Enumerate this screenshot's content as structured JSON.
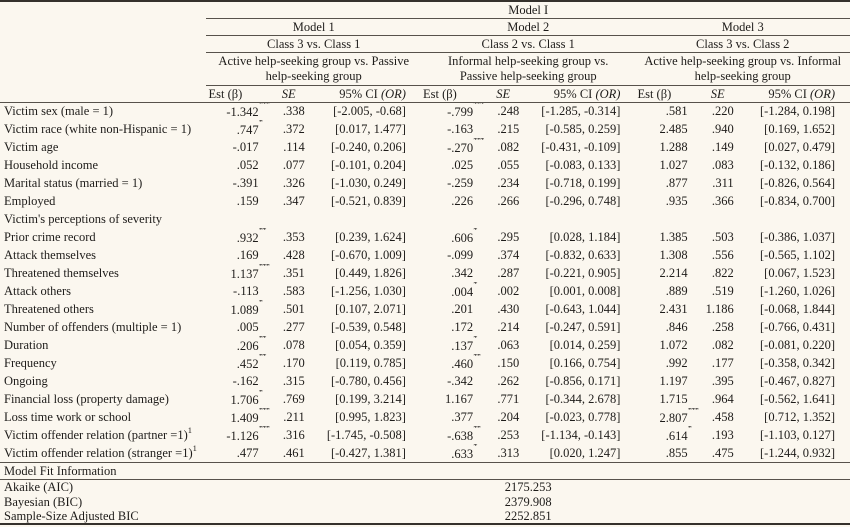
{
  "header": {
    "span_title": "Model I",
    "models": [
      {
        "name": "Model 1",
        "classes": "Class 3 vs. Class 1",
        "groups": "Active help-seeking group vs. Passive help-seeking group"
      },
      {
        "name": "Model 2",
        "classes": "Class 2 vs. Class 1",
        "groups": "Informal help-seeking group vs. Passive help-seeking group"
      },
      {
        "name": "Model 3",
        "classes": "Class 3 vs. Class 2",
        "groups": "Active help-seeking group vs. Informal help-seeking group"
      }
    ],
    "est_label": "Est (β)",
    "se_label": "SE",
    "ci_label": "95% CI",
    "ci_or_label": "(OR)"
  },
  "rows": [
    {
      "label": "Victim sex (male = 1)",
      "m": [
        [
          "-1.342",
          "***",
          ".338",
          "[-2.005, -0.68]"
        ],
        [
          "-.799",
          "***",
          ".248",
          "[-1.285, -0.314]"
        ],
        [
          ".581",
          "",
          ".220",
          "[-1.284, 0.198]"
        ]
      ]
    },
    {
      "label": "Victim race (white non-Hispanic = 1)",
      "m": [
        [
          ".747",
          "*",
          ".372",
          "[0.017, 1.477]"
        ],
        [
          "-.163",
          "",
          ".215",
          "[-0.585, 0.259]"
        ],
        [
          "2.485",
          "",
          ".940",
          "[0.169, 1.652]"
        ]
      ]
    },
    {
      "label": "Victim age",
      "m": [
        [
          "-.017",
          "",
          ".114",
          "[-0.240, 0.206]"
        ],
        [
          "-.270",
          "***",
          ".082",
          "[-0.431, -0.109]"
        ],
        [
          "1.288",
          "",
          ".149",
          "[0.027, 0.479]"
        ]
      ]
    },
    {
      "label": "Household income",
      "m": [
        [
          ".052",
          "",
          ".077",
          "[-0.101, 0.204]"
        ],
        [
          ".025",
          "",
          ".055",
          "[-0.083, 0.133]"
        ],
        [
          "1.027",
          "",
          ".083",
          "[-0.132, 0.186]"
        ]
      ]
    },
    {
      "label": "Marital status (married = 1)",
      "m": [
        [
          "-.391",
          "",
          ".326",
          "[-1.030, 0.249]"
        ],
        [
          "-.259",
          "",
          ".234",
          "[-0.718, 0.199]"
        ],
        [
          ".877",
          "",
          ".311",
          "[-0.826, 0.564]"
        ]
      ]
    },
    {
      "label": "Employed",
      "m": [
        [
          ".159",
          "",
          ".347",
          "[-0.521, 0.839]"
        ],
        [
          ".226",
          "",
          ".266",
          "[-0.296, 0.748]"
        ],
        [
          ".935",
          "",
          ".366",
          "[-0.834, 0.700]"
        ]
      ]
    },
    {
      "label": "Victim's perceptions of severity",
      "section": true
    },
    {
      "label": "Prior crime record",
      "m": [
        [
          ".932",
          "**",
          ".353",
          "[0.239, 1.624]"
        ],
        [
          ".606",
          "*",
          ".295",
          "[0.028, 1.184]"
        ],
        [
          "1.385",
          "",
          ".503",
          "[-0.386, 1.037]"
        ]
      ]
    },
    {
      "label": "Attack themselves",
      "m": [
        [
          ".169",
          "",
          ".428",
          "[-0.670, 1.009]"
        ],
        [
          "-.099",
          "",
          ".374",
          "[-0.832, 0.633]"
        ],
        [
          "1.308",
          "",
          ".556",
          "[-0.565, 1.102]"
        ]
      ]
    },
    {
      "label": "Threatened themselves",
      "m": [
        [
          "1.137",
          "***",
          ".351",
          "[0.449, 1.826]"
        ],
        [
          ".342",
          "",
          ".287",
          "[-0.221, 0.905]"
        ],
        [
          "2.214",
          "",
          ".822",
          "[0.067, 1.523]"
        ]
      ]
    },
    {
      "label": "Attack others",
      "m": [
        [
          "-.113",
          "",
          ".583",
          "[-1.256, 1.030]"
        ],
        [
          ".004",
          "*",
          ".002",
          "[0.001, 0.008]"
        ],
        [
          ".889",
          "",
          ".519",
          "[-1.260, 1.026]"
        ]
      ]
    },
    {
      "label": "Threatened others",
      "m": [
        [
          "1.089",
          "*",
          ".501",
          "[0.107, 2.071]"
        ],
        [
          ".201",
          "",
          ".430",
          "[-0.643, 1.044]"
        ],
        [
          "2.431",
          "",
          "1.186",
          "[-0.068, 1.844]"
        ]
      ]
    },
    {
      "label": "Number of offenders (multiple = 1)",
      "m": [
        [
          ".005",
          "",
          ".277",
          "[-0.539, 0.548]"
        ],
        [
          ".172",
          "",
          ".214",
          "[-0.247, 0.591]"
        ],
        [
          ".846",
          "",
          ".258",
          "[-0.766, 0.431]"
        ]
      ]
    },
    {
      "label": "Duration",
      "m": [
        [
          ".206",
          "**",
          ".078",
          "[0.054, 0.359]"
        ],
        [
          ".137",
          "*",
          ".063",
          "[0.014, 0.259]"
        ],
        [
          "1.072",
          "",
          ".082",
          "[-0.081, 0.220]"
        ]
      ]
    },
    {
      "label": "Frequency",
      "m": [
        [
          ".452",
          "**",
          ".170",
          "[0.119, 0.785]"
        ],
        [
          ".460",
          "**",
          ".150",
          "[0.166, 0.754]"
        ],
        [
          ".992",
          "",
          ".177",
          "[-0.358, 0.342]"
        ]
      ]
    },
    {
      "label": "Ongoing",
      "m": [
        [
          "-.162",
          "",
          ".315",
          "[-0.780, 0.456]"
        ],
        [
          "-.342",
          "",
          ".262",
          "[-0.856, 0.171]"
        ],
        [
          "1.197",
          "",
          ".395",
          "[-0.467, 0.827]"
        ]
      ]
    },
    {
      "label": "Financial loss (property damage)",
      "m": [
        [
          "1.706",
          "*",
          ".769",
          "[0.199, 3.214]"
        ],
        [
          "1.167",
          "",
          ".771",
          "[-0.344, 2.678]"
        ],
        [
          "1.715",
          "",
          ".964",
          "[-0.562, 1.641]"
        ]
      ]
    },
    {
      "label": "Loss time work or school",
      "m": [
        [
          "1.409",
          "***",
          ".211",
          "[0.995, 1.823]"
        ],
        [
          ".377",
          "",
          ".204",
          "[-0.023, 0.778]"
        ],
        [
          "2.807",
          "***",
          ".458",
          "[0.712, 1.352]"
        ]
      ]
    },
    {
      "label": "Victim offender relation (partner =1)",
      "sup": "1",
      "m": [
        [
          "-1.126",
          "***",
          ".316",
          "[-1.745, -0.508]"
        ],
        [
          "-.638",
          "**",
          ".253",
          "[-1.134, -0.143]"
        ],
        [
          ".614",
          "*",
          ".193",
          "[-1.103, 0.127]"
        ]
      ]
    },
    {
      "label": "Victim offender relation (stranger =1)",
      "sup": "1",
      "m": [
        [
          ".477",
          "",
          ".461",
          "[-0.427, 1.381]"
        ],
        [
          ".633",
          "*",
          ".313",
          "[0.020, 1.247]"
        ],
        [
          ".855",
          "",
          ".475",
          "[-1.244, 0.932]"
        ]
      ]
    }
  ],
  "fit": {
    "header": "Model Fit Information",
    "rows": [
      {
        "label": "Akaike (AIC)",
        "value": "2175.253"
      },
      {
        "label": "Bayesian (BIC)",
        "value": "2379.908"
      },
      {
        "label": "Sample-Size Adjusted BIC",
        "value": "2252.851"
      }
    ]
  },
  "colors": {
    "background": "#fbf7ef",
    "text": "#1e1c1a",
    "rule_thin": "#57524b",
    "rule_heavy": "#35312c"
  }
}
